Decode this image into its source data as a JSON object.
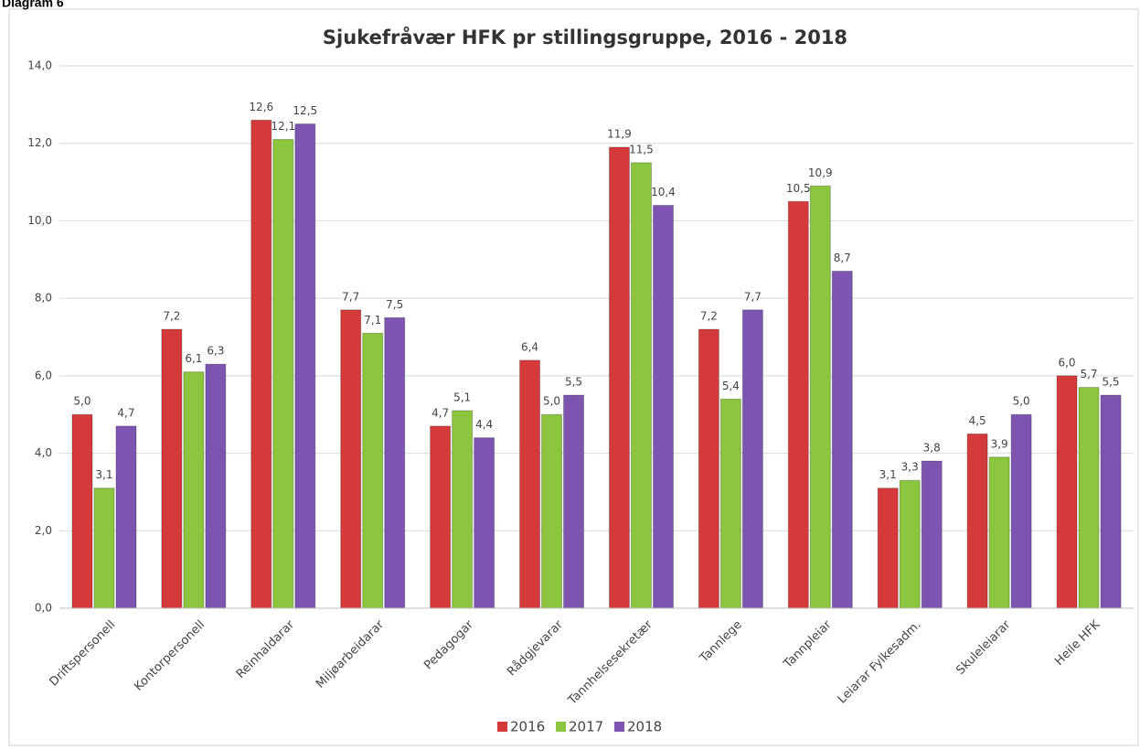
{
  "label": "Diagram 6",
  "chart_data": {
    "type": "bar",
    "title": "Sjukefråvær HFK pr stillingsgruppe, 2016 - 2018",
    "categories": [
      "Driftspersonell",
      "Kontorpersonell",
      "Reinhaldarar",
      "Miljøarbeidarar",
      "Pedagogar",
      "Rådgjevarar",
      "Tannhelsesekretær",
      "Tannlege",
      "Tannpleiar",
      "Leiarar Fylkesadm.",
      "Skuleleiarar",
      "Heile HFK"
    ],
    "series": [
      {
        "name": "2016",
        "color": "#d43a3a",
        "values": [
          5.0,
          7.2,
          12.6,
          7.7,
          4.7,
          6.4,
          11.9,
          7.2,
          10.5,
          3.1,
          4.5,
          6.0
        ],
        "value_labels": [
          "5,0",
          "7,2",
          "12,6",
          "7,7",
          "4,7",
          "6,4",
          "11,9",
          "7,2",
          "10,5",
          "3,1",
          "4,5",
          "6,0"
        ]
      },
      {
        "name": "2017",
        "color": "#8cc63e",
        "values": [
          3.1,
          6.1,
          12.1,
          7.1,
          5.1,
          5.0,
          11.5,
          5.4,
          10.9,
          3.3,
          3.9,
          5.7
        ],
        "value_labels": [
          "3,1",
          "6,1",
          "12,1",
          "7,1",
          "5,1",
          "5,0",
          "11,5",
          "5,4",
          "10,9",
          "3,3",
          "3,9",
          "5,7"
        ]
      },
      {
        "name": "2018",
        "color": "#7b55b0",
        "values": [
          4.7,
          6.3,
          12.5,
          7.5,
          4.4,
          5.5,
          10.4,
          7.7,
          8.7,
          3.8,
          5.0,
          5.5
        ],
        "value_labels": [
          "4,7",
          "6,3",
          "12,5",
          "7,5",
          "4,4",
          "5,5",
          "10,4",
          "7,7",
          "8,7",
          "3,8",
          "5,0",
          "5,5"
        ]
      }
    ],
    "ylim": [
      0,
      14
    ],
    "yticks": [
      {
        "value": 0,
        "label": "0,0"
      },
      {
        "value": 2,
        "label": "2,0"
      },
      {
        "value": 4,
        "label": "4,0"
      },
      {
        "value": 6,
        "label": "6,0"
      },
      {
        "value": 8,
        "label": "8,0"
      },
      {
        "value": 10,
        "label": "10,0"
      },
      {
        "value": 12,
        "label": "12,0"
      },
      {
        "value": 14,
        "label": "14,0"
      }
    ],
    "grid": true,
    "legend": "bottom"
  }
}
